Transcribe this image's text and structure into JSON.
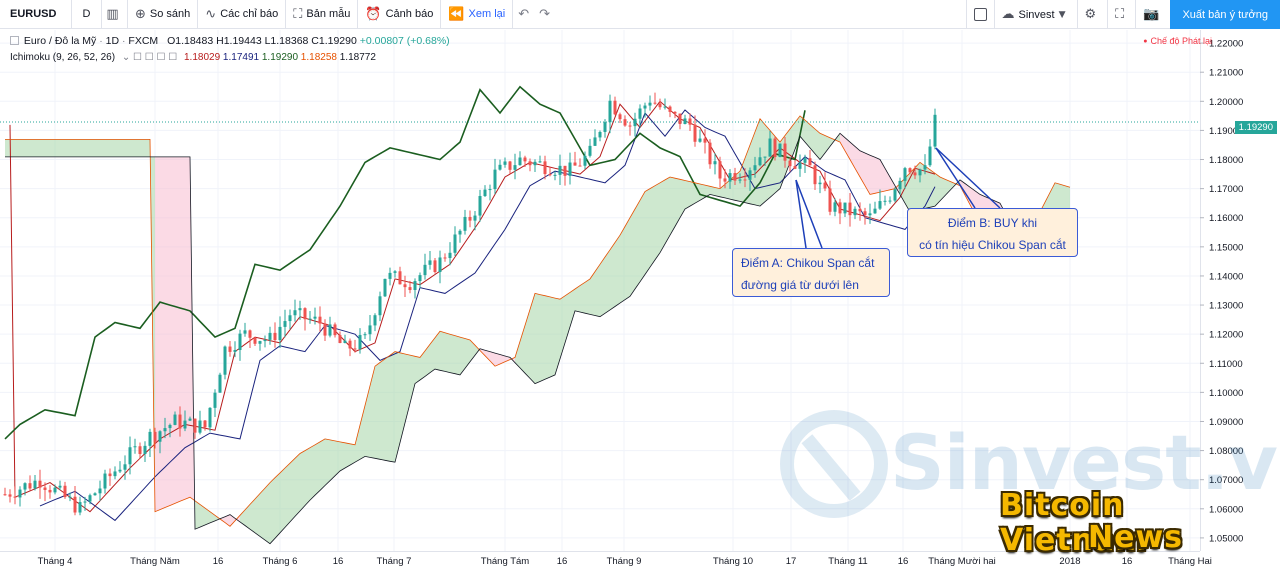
{
  "toolbar": {
    "symbol": "EURUSD",
    "interval": "D",
    "compare_label": "So sánh",
    "indicators_label": "Các chỉ báo",
    "templates_label": "Bản mẫu",
    "alerts_label": "Cảnh báo",
    "replay_label": "Xem lại",
    "account_label": "Sinvest",
    "publish_label": "Xuất bản ý tưởng"
  },
  "legend": {
    "title": "Euro / Đô la Mỹ",
    "interval": "1D",
    "exchange": "FXCM",
    "ohlc": "O1.18483  H1.19443  L1.18368  C1.19290",
    "change": "+0.00807 (+0.68%)",
    "indicator_name": "Ichimoku (9, 26, 52, 26)",
    "ind_values": [
      "1.18029",
      "1.17491",
      "1.19290",
      "1.18258",
      "1.18772"
    ],
    "ind_colors": [
      "#b71c1c",
      "#1a237e",
      "#1b5e20",
      "#e65100",
      "#131722"
    ],
    "live_mode": "Chế độ Phát lại"
  },
  "current_price": "1.19290",
  "callouts": {
    "a_line1": "Điểm A: Chikou Span cắt",
    "a_line2": "đường giá từ dưới lên",
    "b_line1": "Điểm B: BUY khi",
    "b_line2": "có tín hiệu Chikou Span cắt"
  },
  "watermark": {
    "site": "Sinvest.vn",
    "brand_line1": "Bitcoin Vietnam",
    "brand_line2": "News"
  },
  "chart_data": {
    "type": "candlestick",
    "y_ticks": [
      "1.22000",
      "1.21000",
      "1.20000",
      "1.19000",
      "1.18000",
      "1.17000",
      "1.16000",
      "1.15000",
      "1.14000",
      "1.13000",
      "1.12000",
      "1.11000",
      "1.10000",
      "1.09000",
      "1.08000",
      "1.07000",
      "1.06000",
      "1.05000"
    ],
    "x_ticks": [
      "Tháng 4",
      "Tháng Năm",
      "16",
      "Tháng 6",
      "16",
      "Tháng 7",
      "Tháng Tám",
      "16",
      "Tháng 9",
      "Tháng 10",
      "17",
      "Tháng 11",
      "16",
      "Tháng Mười hai",
      "2018",
      "16",
      "Tháng Hai"
    ],
    "ylim": [
      1.0455,
      1.2245
    ],
    "series": [
      {
        "name": "Ichimoku",
        "values": []
      }
    ],
    "colors": {
      "up": "#26a69a",
      "down": "#ef5350",
      "tenkan": "#b71c1c",
      "kijun": "#1a237e",
      "chikou": "#1b5e20",
      "senkou_a": "#e65100",
      "senkou_b": "#131722",
      "cloud_up": "#a5d6a7",
      "cloud_down": "#f8bbd0"
    }
  }
}
